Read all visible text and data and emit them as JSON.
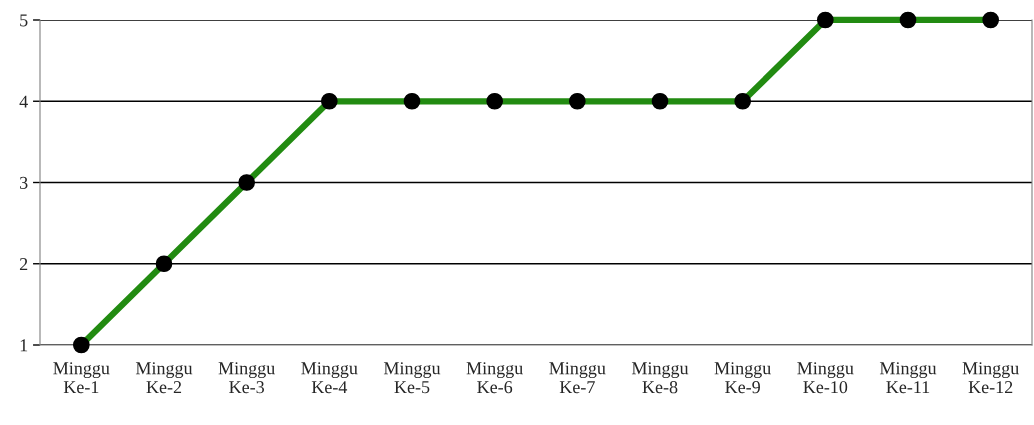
{
  "chart_data": {
    "type": "line",
    "categories": [
      "Minggu\nKe-1",
      "Minggu\nKe-2",
      "Minggu\nKe-3",
      "Minggu\nKe-4",
      "Minggu\nKe-5",
      "Minggu\nKe-6",
      "Minggu\nKe-7",
      "Minggu\nKe-8",
      "Minggu\nKe-9",
      "Minggu\nKe-10",
      "Minggu\nKe-11",
      "Minggu\nKe-12"
    ],
    "series": [
      {
        "color": "#228b11",
        "values": [
          1,
          2,
          3,
          4,
          4,
          4,
          4,
          4,
          4,
          5,
          5,
          5
        ]
      }
    ],
    "ylim": [
      1,
      5
    ],
    "yticks": [
      1,
      2,
      3,
      4,
      5
    ],
    "grid": "y",
    "marker": "circle",
    "line_style": "solid",
    "legend": false
  }
}
